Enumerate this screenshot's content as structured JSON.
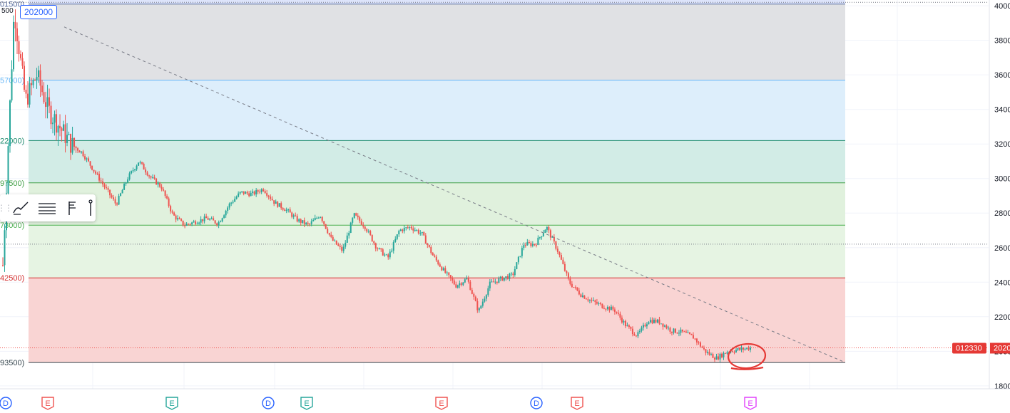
{
  "colors": {
    "up": "#26a69a",
    "down": "#ef5350",
    "fib_gray": "#e0e1e4",
    "fib_blue": "#ddeefb",
    "fib_teal": "#d2ece6",
    "fib_green": "#e0f1dd",
    "fib_lightgreen": "#e6f4e3",
    "fib_red": "#f9d4d3",
    "accent_blue": "#2962ff",
    "label_red": "#e53935"
  },
  "tooltip": {
    "value": "202000"
  },
  "corner_label": "500",
  "fib_labels": [
    {
      "text": "01500)",
      "price": 4010
    },
    {
      "text": "57000)",
      "price": 3570
    },
    {
      "text": "22000)",
      "price": 3220
    },
    {
      "text": "97500)",
      "price": 2975
    },
    {
      "text": "73000)",
      "price": 2730
    },
    {
      "text": "42500)",
      "price": 2425
    },
    {
      "text": "93500)",
      "price": 1935
    }
  ],
  "price_axis": {
    "ticks": [
      "4000",
      "3800",
      "3600",
      "3400",
      "3200",
      "3000",
      "2800",
      "2600",
      "2400",
      "2200",
      "2000",
      "1800"
    ],
    "current_price_label": "012330",
    "current_price_label2": "2020"
  },
  "event_markers": [
    {
      "letter": "D",
      "kind": "dividend",
      "slot": 0
    },
    {
      "letter": "E",
      "kind": "earnings",
      "slot": 1
    },
    {
      "letter": "E",
      "kind": "earnings",
      "slot": 2
    },
    {
      "letter": "D",
      "kind": "dividend",
      "slot": 3
    },
    {
      "letter": "E",
      "kind": "earnings",
      "slot": 4
    },
    {
      "letter": "E",
      "kind": "earnings",
      "slot": 5
    },
    {
      "letter": "D",
      "kind": "dividend",
      "slot": 6
    },
    {
      "letter": "E",
      "kind": "earnings",
      "slot": 7
    },
    {
      "letter": "E",
      "kind": "earnings",
      "slot": 8
    }
  ],
  "chart_data": {
    "type": "candlestick",
    "title": "",
    "y_axis_ticks": [
      4000,
      3800,
      3600,
      3400,
      3200,
      3000,
      2800,
      2600,
      2400,
      2200,
      2000,
      1800
    ],
    "ylim": [
      1750,
      4060
    ],
    "fib_levels": [
      4010,
      3570,
      3220,
      2975,
      2730,
      2425,
      1935
    ],
    "trendline": {
      "from_close": 3960,
      "to_close": 1935
    },
    "current_price": 2020,
    "close_path": [
      2500,
      3980,
      3450,
      3600,
      3400,
      3300,
      3200,
      3150,
      3050,
      2950,
      2850,
      3000,
      3100,
      3010,
      2950,
      2790,
      2730,
      2750,
      2770,
      2740,
      2850,
      2920,
      2910,
      2940,
      2860,
      2820,
      2760,
      2730,
      2790,
      2650,
      2580,
      2790,
      2720,
      2600,
      2540,
      2700,
      2720,
      2680,
      2550,
      2460,
      2380,
      2420,
      2230,
      2390,
      2420,
      2440,
      2620,
      2620,
      2720,
      2580,
      2400,
      2330,
      2290,
      2260,
      2240,
      2150,
      2090,
      2180,
      2170,
      2120,
      2110,
      2080,
      2000,
      1960,
      2000,
      2010,
      2020
    ],
    "up_color": "#26a69a",
    "down_color": "#ef5350",
    "grid": true
  },
  "toolbar": {
    "icons": [
      "brush-style-icon",
      "line-settings-icon",
      "flag-icon",
      "anchor-icon"
    ]
  }
}
